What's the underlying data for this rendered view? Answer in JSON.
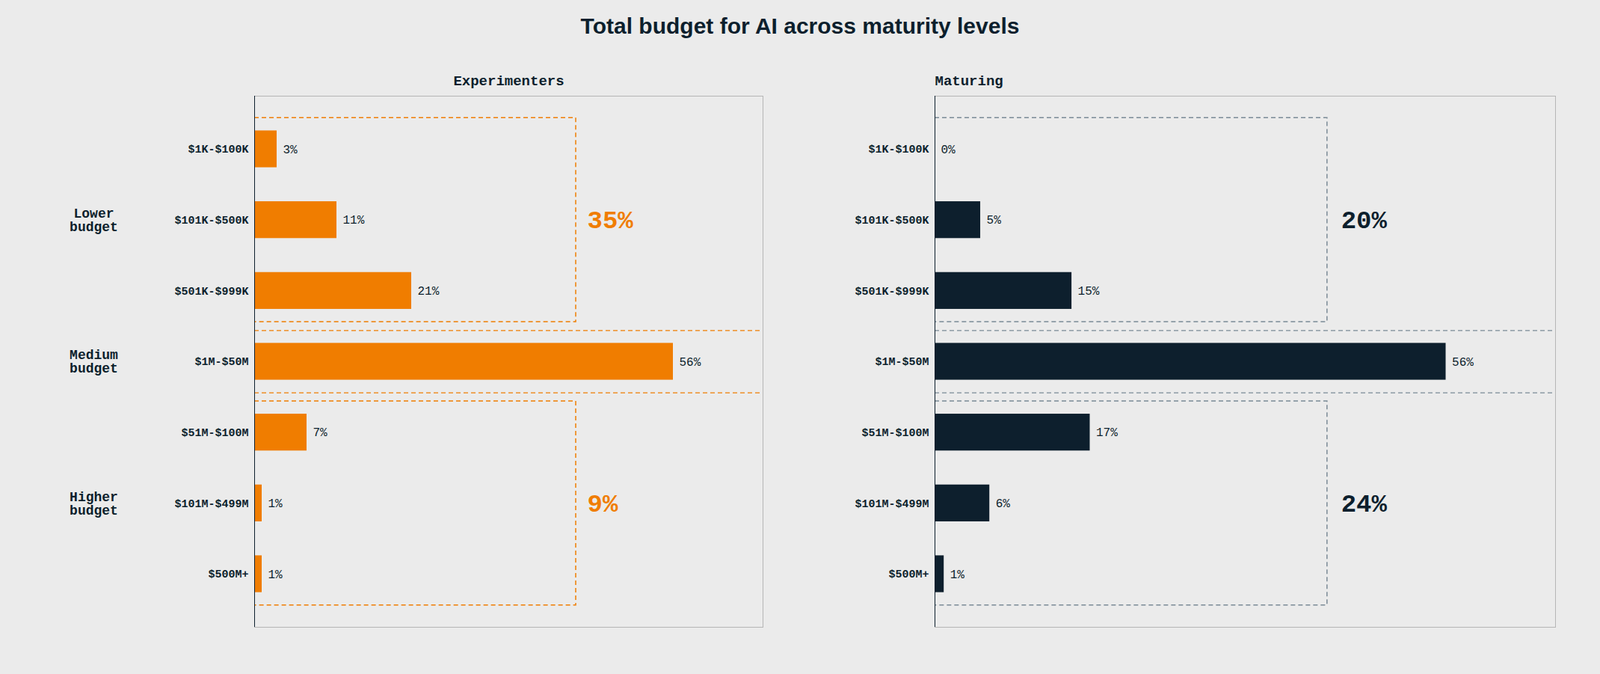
{
  "chart_data": {
    "type": "bar",
    "title": "Total budget for AI across maturity levels",
    "orientation": "horizontal",
    "background_color": "#ebebeb",
    "text_color": "#0d1f2d",
    "categories": [
      "$1K-$100K",
      "$101K-$500K",
      "$501K-$999K",
      "$1M-$50M",
      "$51M-$100M",
      "$101M-$499M",
      "$500M+"
    ],
    "xlim": [
      0,
      68
    ],
    "tick_labels": "y",
    "grid": false,
    "data_labels": true,
    "groups": [
      {
        "label": "Lower\nbudget",
        "categories": [
          "$1K-$100K",
          "$101K-$500K",
          "$501K-$999K"
        ]
      },
      {
        "label": "Medium\nbudget",
        "categories": [
          "$1M-$50M"
        ]
      },
      {
        "label": "Higher\nbudget",
        "categories": [
          "$51M-$100M",
          "$101M-$499M",
          "$500M+"
        ]
      }
    ],
    "series": [
      {
        "name": "Experimenters",
        "color": "#f07d00",
        "box_color": "#f07d00",
        "values": [
          3,
          11,
          21,
          56,
          7,
          1,
          1
        ],
        "value_labels": [
          "3%",
          "11%",
          "21%",
          "56%",
          "7%",
          "1%",
          "1%"
        ],
        "group_totals": [
          35,
          null,
          9
        ],
        "group_total_labels": [
          "35%",
          null,
          "9%"
        ],
        "group_total_color": "#f07d00"
      },
      {
        "name": "Maturing",
        "color": "#0d1f2d",
        "box_color": "#7a8a96",
        "values": [
          0,
          5,
          15,
          56,
          17,
          6,
          1
        ],
        "value_labels": [
          "0%",
          "5%",
          "15%",
          "56%",
          "17%",
          "6%",
          "1%"
        ],
        "group_totals": [
          20,
          null,
          24
        ],
        "group_total_labels": [
          "20%",
          null,
          "24%"
        ],
        "group_total_color": "#0d1f2d"
      }
    ]
  }
}
